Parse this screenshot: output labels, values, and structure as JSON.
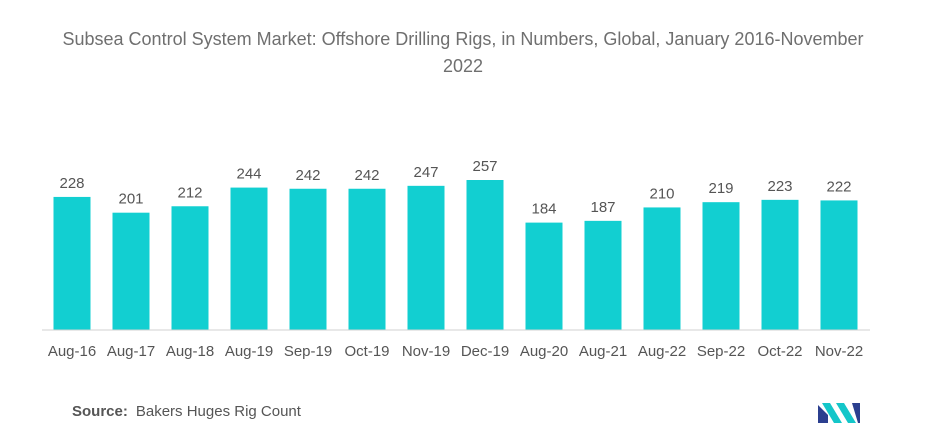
{
  "title": "Subsea Control System Market: Offshore Drilling Rigs, in Numbers, Global, January 2016-November 2022",
  "source": {
    "label": "Source:",
    "text": "Bakers Huges Rig Count"
  },
  "colors": {
    "bar": "#12CFD1",
    "text": "#555555",
    "axis": "#d0d0d0"
  },
  "logo": {
    "icon": "mordor-intelligence-logo-icon"
  },
  "chart_data": {
    "type": "bar",
    "title": "Subsea Control System Market: Offshore Drilling Rigs, in Numbers, Global, January 2016-November 2022",
    "categories": [
      "Aug-16",
      "Aug-17",
      "Aug-18",
      "Aug-19",
      "Sep-19",
      "Oct-19",
      "Nov-19",
      "Dec-19",
      "Aug-20",
      "Aug-21",
      "Aug-22",
      "Sep-22",
      "Oct-22",
      "Nov-22"
    ],
    "values": [
      228,
      201,
      212,
      244,
      242,
      242,
      247,
      257,
      184,
      187,
      210,
      219,
      223,
      222
    ],
    "xlabel": "",
    "ylabel": "",
    "ylim": [
      0,
      257
    ],
    "grid": false,
    "data_labels": true
  }
}
